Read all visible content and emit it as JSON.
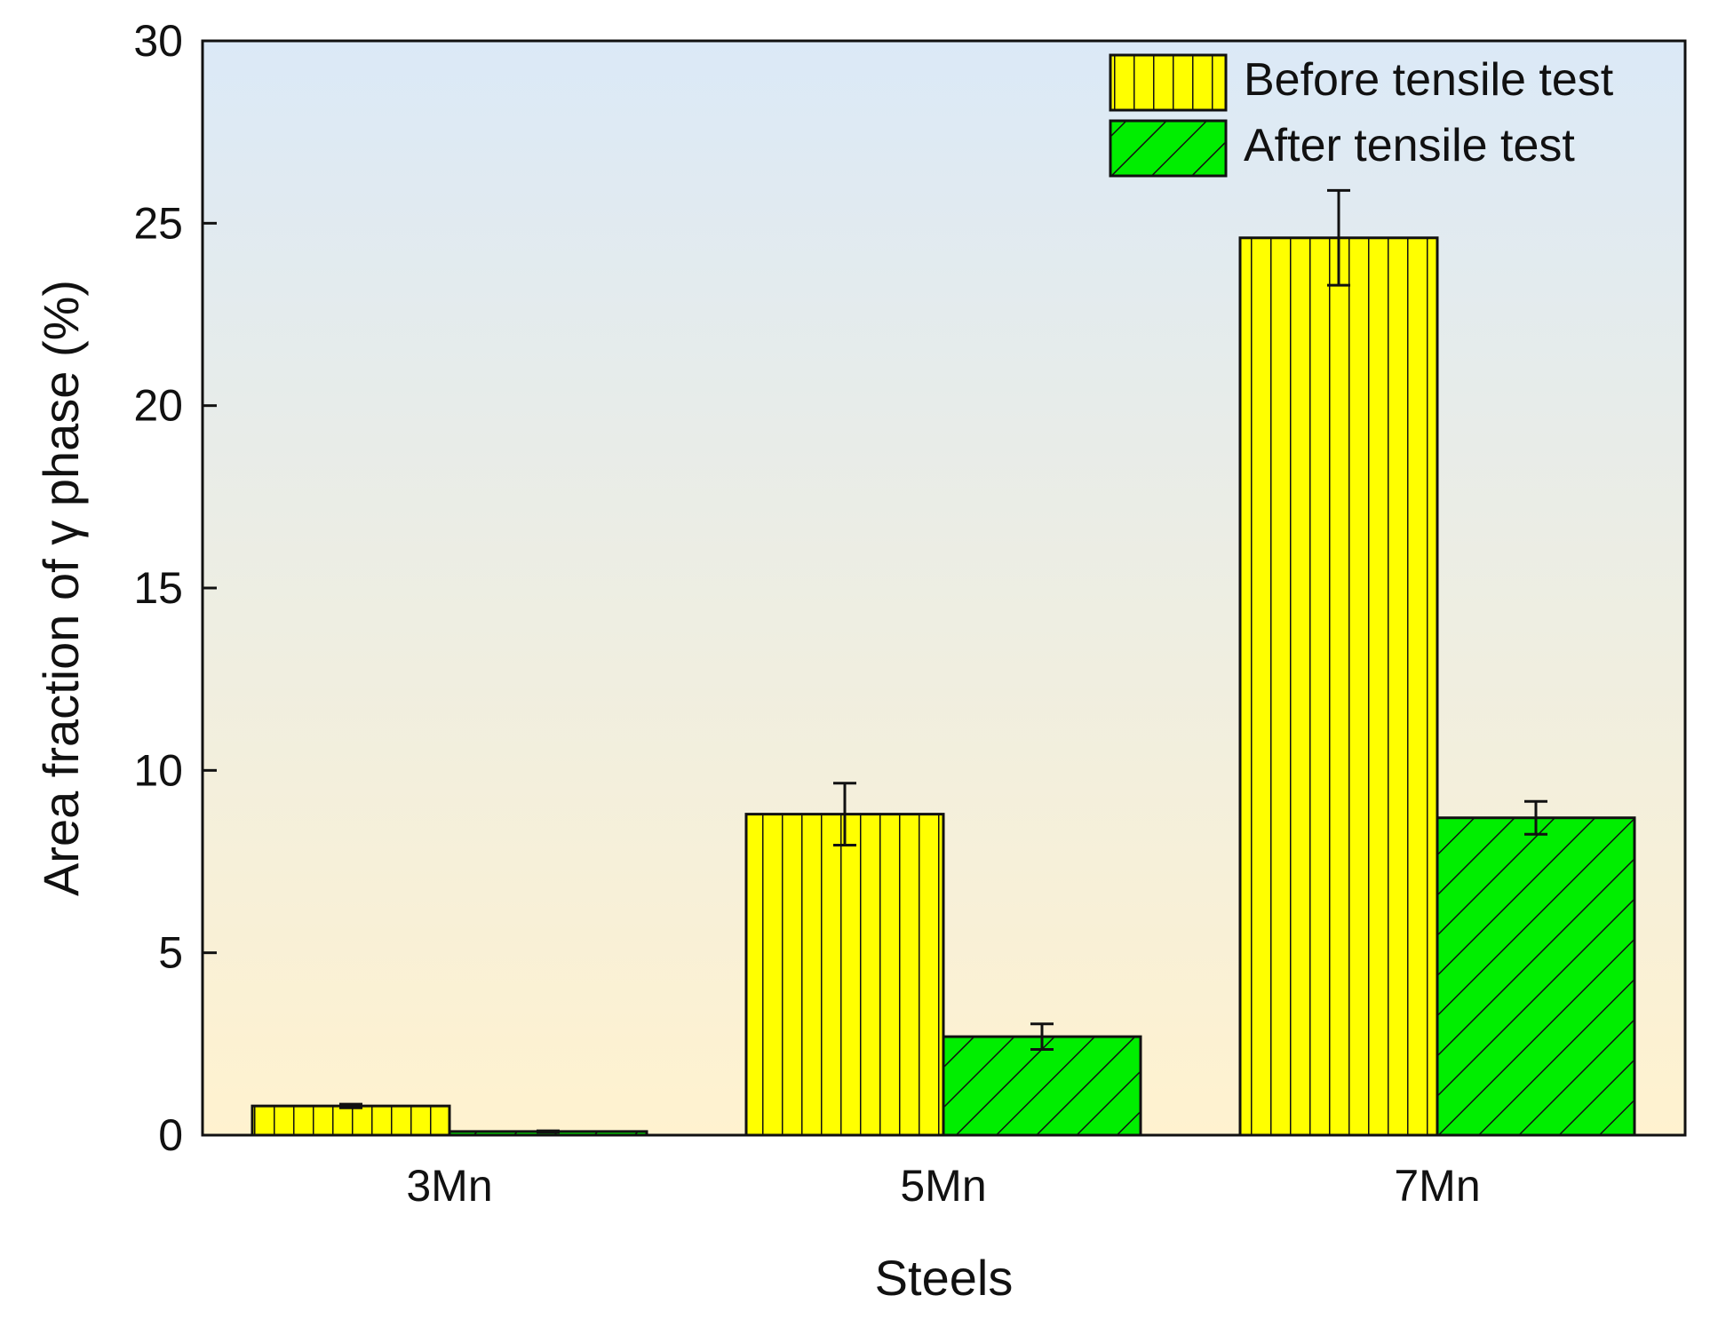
{
  "chart_data": {
    "type": "bar",
    "title": "",
    "xlabel": "Steels",
    "ylabel": "Area fraction of γ phase (%)",
    "categories": [
      "3Mn",
      "5Mn",
      "7Mn"
    ],
    "ylim": [
      0,
      30
    ],
    "yticks": [
      0,
      5,
      10,
      15,
      20,
      25,
      30
    ],
    "grid": false,
    "legend_position": "top-right",
    "background_gradient": [
      "#dbe9f7",
      "#fff2cf"
    ],
    "series": [
      {
        "name": "Before tensile test",
        "values": [
          0.8,
          8.8,
          24.6
        ],
        "errors": [
          0.05,
          0.85,
          1.3
        ],
        "fill": "#ffff00",
        "hatch": "vertical"
      },
      {
        "name": "After tensile test",
        "values": [
          0.1,
          2.7,
          8.7
        ],
        "errors": [
          0.02,
          0.35,
          0.45
        ],
        "fill": "#00ee00",
        "hatch": "diagonal"
      }
    ]
  }
}
